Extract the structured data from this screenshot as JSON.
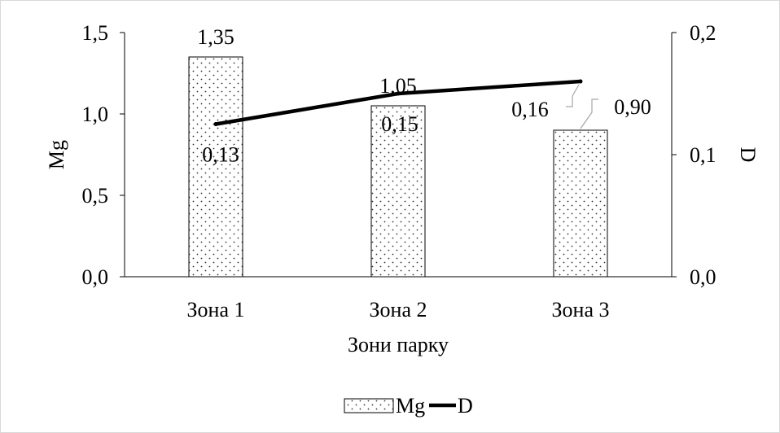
{
  "chart_data": {
    "type": "bar",
    "title": "",
    "xlabel": "Зони парку",
    "ylabel": "Mg",
    "y2label": "D",
    "categories": [
      "Зона 1",
      "Зона 2",
      "Зона 3"
    ],
    "ylim": [
      0,
      1.5
    ],
    "y2lim": [
      0,
      0.2
    ],
    "yticks": [
      {
        "value": 0.0,
        "label": "0,0"
      },
      {
        "value": 0.5,
        "label": "0,5"
      },
      {
        "value": 1.0,
        "label": "1,0"
      },
      {
        "value": 1.5,
        "label": "1,5"
      }
    ],
    "y2ticks": [
      {
        "value": 0.0,
        "label": "0,0"
      },
      {
        "value": 0.1,
        "label": "0,1"
      },
      {
        "value": 0.2,
        "label": "0,2"
      }
    ],
    "series": [
      {
        "name": "Mg",
        "type": "bar",
        "axis": "left",
        "values": [
          1.35,
          1.05,
          0.9
        ],
        "labels": [
          "1,35",
          "1,05",
          "0,90"
        ]
      },
      {
        "name": "D",
        "type": "line",
        "axis": "right",
        "values": [
          0.125,
          0.15,
          0.16
        ],
        "labels": [
          "0,13",
          "0,15",
          "0,16"
        ]
      }
    ],
    "legend": {
      "position": "bottom",
      "items": [
        "Mg",
        "D"
      ]
    },
    "grid": false
  }
}
